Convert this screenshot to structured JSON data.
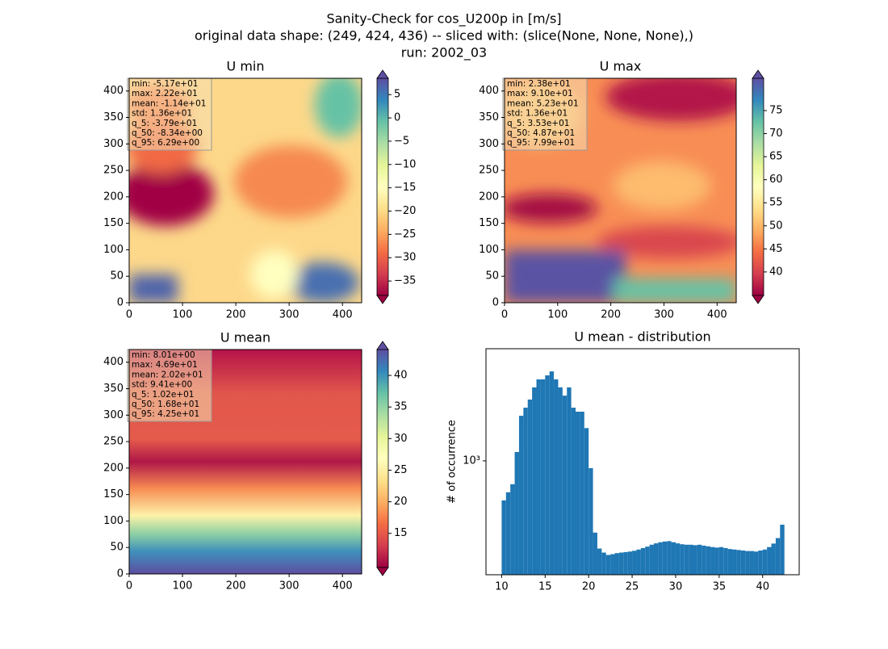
{
  "title_lines": [
    "Sanity-Check for cos_U200p in [m/s]",
    "original data shape: (249, 424, 436) -- sliced with: (slice(None, None, None),)",
    "run: 2002_03"
  ],
  "chart_data": [
    {
      "type": "heatmap",
      "title": "U min",
      "cmap": "Spectral",
      "xlim": [
        0,
        436
      ],
      "ylim": [
        0,
        424
      ],
      "xticks": [
        0,
        100,
        200,
        300,
        400
      ],
      "yticks": [
        0,
        50,
        100,
        150,
        200,
        250,
        300,
        350,
        400
      ],
      "clim": [
        -38.1,
        8.5
      ],
      "cticks": [
        {
          "value": -35,
          "label": "−35"
        },
        {
          "value": -30,
          "label": "−30"
        },
        {
          "value": -25,
          "label": "−25"
        },
        {
          "value": -20,
          "label": "−20"
        },
        {
          "value": -15,
          "label": "−15"
        },
        {
          "value": -10,
          "label": "−10"
        },
        {
          "value": -5,
          "label": "−5"
        },
        0,
        5
      ],
      "stats": [
        "min: -5.17e+01",
        "max: 2.22e+01",
        "mean: -1.14e+01",
        "std: 1.36e+01",
        "q_5: -3.79e+01",
        "q_50: -8.34e+00",
        "q_95: 6.29e+00"
      ]
    },
    {
      "type": "heatmap",
      "title": "U max",
      "cmap": "Spectral",
      "xlim": [
        0,
        436
      ],
      "ylim": [
        0,
        424
      ],
      "xticks": [
        0,
        100,
        200,
        300,
        400
      ],
      "yticks": [
        0,
        50,
        100,
        150,
        200,
        250,
        300,
        350,
        400
      ],
      "clim": [
        34.9,
        82
      ],
      "cticks": [
        40,
        45,
        50,
        55,
        60,
        65,
        70,
        75
      ],
      "stats": [
        "min: 2.38e+01",
        "max: 9.10e+01",
        "mean: 5.23e+01",
        "std: 1.36e+01",
        "q_5: 3.53e+01",
        "q_50: 4.87e+01",
        "q_95: 7.99e+01"
      ]
    },
    {
      "type": "heatmap",
      "title": "U mean",
      "cmap": "Spectral",
      "xlim": [
        0,
        436
      ],
      "ylim": [
        0,
        424
      ],
      "xticks": [
        0,
        100,
        200,
        300,
        400
      ],
      "yticks": [
        0,
        50,
        100,
        150,
        200,
        250,
        300,
        350,
        400
      ],
      "clim": [
        9.6,
        44.1
      ],
      "cticks": [
        15,
        20,
        25,
        30,
        35,
        40
      ],
      "stats": [
        "min: 8.01e+00",
        "max: 4.69e+01",
        "mean: 2.02e+01",
        "std: 9.41e+00",
        "q_5: 1.02e+01",
        "q_50: 1.68e+01",
        "q_95: 4.25e+01"
      ]
    },
    {
      "type": "histogram",
      "title": "U mean - distribution",
      "ylabel": "# of occurrence",
      "color": "#1f77b4",
      "log_y": true,
      "xlim": [
        8.2,
        44.2
      ],
      "ylim": [
        195,
        5000
      ],
      "xticks": [
        10,
        15,
        20,
        25,
        30,
        35,
        40
      ],
      "yticks": [
        {
          "value": 1000,
          "label": "10³"
        }
      ],
      "bins": [
        10,
        10.5,
        11,
        11.5,
        12,
        12.5,
        13,
        13.5,
        14,
        14.5,
        15,
        15.5,
        16,
        16.5,
        17,
        17.5,
        18,
        18.5,
        19,
        19.5,
        20,
        20.5,
        21,
        21.5,
        22,
        22.5,
        23,
        23.5,
        24,
        24.5,
        25,
        25.5,
        26,
        26.5,
        27,
        27.5,
        28,
        28.5,
        29,
        29.5,
        30,
        30.5,
        31,
        31.5,
        32,
        32.5,
        33,
        33.5,
        34,
        34.5,
        35,
        35.5,
        36,
        36.5,
        37,
        37.5,
        38,
        38.5,
        39,
        39.5,
        40,
        40.5,
        41,
        41.5,
        42,
        42.5
      ],
      "counts": [
        567,
        637,
        715,
        1135,
        1910,
        2145,
        2410,
        2870,
        3220,
        3220,
        3410,
        3610,
        3220,
        2870,
        2550,
        2870,
        2145,
        2025,
        2025,
        1600,
        900,
        357,
        284,
        268,
        259,
        262,
        266,
        268,
        270,
        272,
        275,
        280,
        286,
        292,
        300,
        306,
        311,
        314,
        316,
        311,
        306,
        302,
        300,
        300,
        298,
        300,
        296,
        293,
        290,
        288,
        290,
        286,
        282,
        280,
        278,
        276,
        274,
        274,
        272,
        276,
        280,
        290,
        305,
        330,
        400
      ]
    }
  ]
}
